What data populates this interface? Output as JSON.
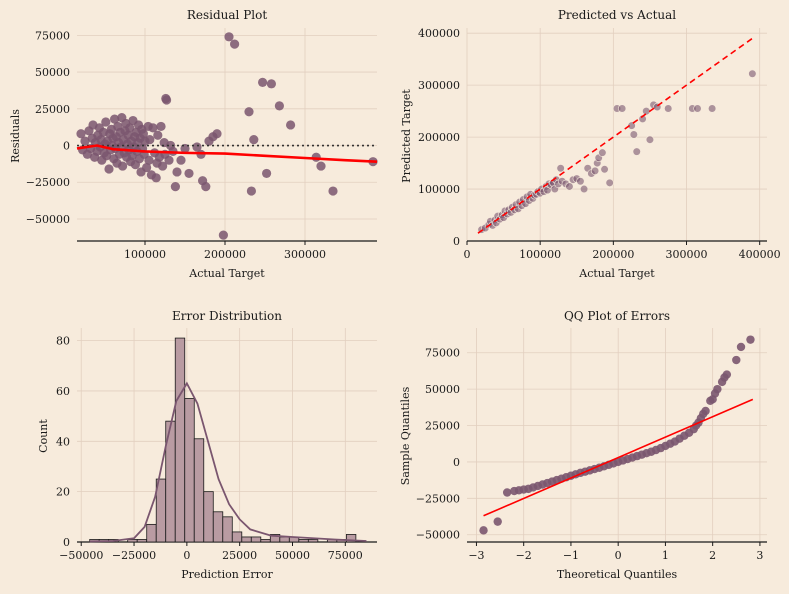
{
  "colors": {
    "background": "#f7ebdc",
    "point": "#7a566f",
    "red": "#ff0000",
    "bar_fill": "#b99ba2",
    "axis": "#1a1a1a"
  },
  "chart_data": [
    {
      "type": "scatter",
      "title": "Residual Plot",
      "xlabel": "Actual Target",
      "ylabel": "Residuals",
      "xlim": [
        15000,
        390000
      ],
      "ylim": [
        -65000,
        80000
      ],
      "xticks": [
        100000,
        200000,
        300000
      ],
      "xtick_labels": [
        "100000",
        "200000",
        "300000"
      ],
      "yticks": [
        -50000,
        -25000,
        0,
        25000,
        50000,
        75000
      ],
      "ytick_labels": [
        "−50000",
        "−25000",
        "0",
        "25000",
        "50000",
        "75000"
      ],
      "reference_line": 0,
      "points": [
        [
          20000,
          8000
        ],
        [
          22000,
          -3000
        ],
        [
          25000,
          3000
        ],
        [
          28000,
          -6000
        ],
        [
          30000,
          10000
        ],
        [
          32000,
          -2000
        ],
        [
          34000,
          5000
        ],
        [
          35000,
          14000
        ],
        [
          37000,
          -8000
        ],
        [
          38000,
          2000
        ],
        [
          40000,
          -4000
        ],
        [
          41000,
          7000
        ],
        [
          43000,
          12000
        ],
        [
          44000,
          -1000
        ],
        [
          45000,
          4000
        ],
        [
          46000,
          -10000
        ],
        [
          48000,
          9000
        ],
        [
          49000,
          -5000
        ],
        [
          50000,
          1000
        ],
        [
          51000,
          16000
        ],
        [
          52000,
          -7000
        ],
        [
          53000,
          3000
        ],
        [
          55000,
          -16000
        ],
        [
          56000,
          8000
        ],
        [
          57000,
          -3000
        ],
        [
          58000,
          11000
        ],
        [
          59000,
          0
        ],
        [
          60000,
          5000
        ],
        [
          61000,
          -9000
        ],
        [
          62000,
          18000
        ],
        [
          63000,
          -2000
        ],
        [
          64000,
          6000
        ],
        [
          65000,
          -12000
        ],
        [
          66000,
          13000
        ],
        [
          67000,
          2000
        ],
        [
          68000,
          -6000
        ],
        [
          69000,
          9000
        ],
        [
          70000,
          -1000
        ],
        [
          71000,
          19000
        ],
        [
          72000,
          -14000
        ],
        [
          73000,
          4000
        ],
        [
          74000,
          -5000
        ],
        [
          75000,
          10000
        ],
        [
          76000,
          15000
        ],
        [
          77000,
          -8000
        ],
        [
          78000,
          1000
        ],
        [
          79000,
          7000
        ],
        [
          80000,
          -3000
        ],
        [
          81000,
          12000
        ],
        [
          82000,
          -11000
        ],
        [
          83000,
          3000
        ],
        [
          84000,
          -7000
        ],
        [
          85000,
          17000
        ],
        [
          86000,
          -1000
        ],
        [
          87000,
          6000
        ],
        [
          88000,
          -13000
        ],
        [
          89000,
          9000
        ],
        [
          90000,
          -4000
        ],
        [
          91000,
          2000
        ],
        [
          92000,
          14000
        ],
        [
          93000,
          -9000
        ],
        [
          94000,
          5000
        ],
        [
          95000,
          -18000
        ],
        [
          96000,
          11000
        ],
        [
          97000,
          -2000
        ],
        [
          98000,
          8000
        ],
        [
          99000,
          -6000
        ],
        [
          100000,
          3000
        ],
        [
          102000,
          -15000
        ],
        [
          104000,
          13000
        ],
        [
          105000,
          -10000
        ],
        [
          106000,
          4000
        ],
        [
          108000,
          -20000
        ],
        [
          110000,
          12000
        ],
        [
          112000,
          -5000
        ],
        [
          114000,
          -22000
        ],
        [
          115000,
          -12000
        ],
        [
          116000,
          7000
        ],
        [
          118000,
          -8000
        ],
        [
          120000,
          13000
        ],
        [
          122000,
          -14000
        ],
        [
          124000,
          2000
        ],
        [
          125000,
          -6000
        ],
        [
          126000,
          32000
        ],
        [
          127000,
          31000
        ],
        [
          130000,
          -10000
        ],
        [
          132000,
          0
        ],
        [
          135000,
          -4000
        ],
        [
          138000,
          -28000
        ],
        [
          140000,
          -18000
        ],
        [
          145000,
          -10000
        ],
        [
          150000,
          -2000
        ],
        [
          155000,
          -19000
        ],
        [
          165000,
          -1000
        ],
        [
          170000,
          -6000
        ],
        [
          172000,
          -24000
        ],
        [
          176000,
          -28000
        ],
        [
          180000,
          3000
        ],
        [
          185000,
          6000
        ],
        [
          190000,
          8000
        ],
        [
          198000,
          -61000
        ],
        [
          205000,
          74000
        ],
        [
          212000,
          69000
        ],
        [
          230000,
          23000
        ],
        [
          233000,
          -31000
        ],
        [
          236000,
          4000
        ],
        [
          247000,
          43000
        ],
        [
          252000,
          -19000
        ],
        [
          258000,
          42000
        ],
        [
          268000,
          27000
        ],
        [
          282000,
          14000
        ],
        [
          314000,
          -8000
        ],
        [
          320000,
          -14000
        ],
        [
          335000,
          -31000
        ],
        [
          385000,
          -11000
        ]
      ],
      "lowess": [
        [
          15000,
          -2000
        ],
        [
          40000,
          0
        ],
        [
          60000,
          -2500
        ],
        [
          100000,
          -4000
        ],
        [
          150000,
          -5000
        ],
        [
          200000,
          -5500
        ],
        [
          250000,
          -7000
        ],
        [
          300000,
          -8500
        ],
        [
          350000,
          -10000
        ],
        [
          390000,
          -11000
        ]
      ]
    },
    {
      "type": "scatter",
      "title": "Predicted vs Actual",
      "xlabel": "Actual Target",
      "ylabel": "Predicted Target",
      "xlim": [
        0,
        410000
      ],
      "ylim": [
        0,
        410000
      ],
      "xticks": [
        0,
        100000,
        200000,
        300000,
        400000
      ],
      "xtick_labels": [
        "0",
        "100000",
        "200000",
        "300000",
        "400000"
      ],
      "yticks": [
        0,
        100000,
        200000,
        300000,
        400000
      ],
      "ytick_labels": [
        "0",
        "100000",
        "200000",
        "300000",
        "400000"
      ],
      "identity_line": [
        [
          15000,
          15000
        ],
        [
          390000,
          390000
        ]
      ],
      "points": [
        [
          20000,
          22000
        ],
        [
          25000,
          25000
        ],
        [
          30000,
          32000
        ],
        [
          32000,
          38000
        ],
        [
          35000,
          30000
        ],
        [
          38000,
          40000
        ],
        [
          40000,
          35000
        ],
        [
          42000,
          48000
        ],
        [
          45000,
          42000
        ],
        [
          48000,
          50000
        ],
        [
          50000,
          45000
        ],
        [
          52000,
          58000
        ],
        [
          55000,
          52000
        ],
        [
          57000,
          60000
        ],
        [
          60000,
          55000
        ],
        [
          62000,
          65000
        ],
        [
          65000,
          60000
        ],
        [
          67000,
          70000
        ],
        [
          70000,
          62000
        ],
        [
          72000,
          75000
        ],
        [
          75000,
          68000
        ],
        [
          77000,
          80000
        ],
        [
          80000,
          72000
        ],
        [
          82000,
          85000
        ],
        [
          85000,
          78000
        ],
        [
          87000,
          90000
        ],
        [
          90000,
          82000
        ],
        [
          92000,
          88000
        ],
        [
          95000,
          90000
        ],
        [
          97000,
          95000
        ],
        [
          100000,
          92000
        ],
        [
          102000,
          100000
        ],
        [
          105000,
          95000
        ],
        [
          108000,
          105000
        ],
        [
          110000,
          98000
        ],
        [
          112000,
          110000
        ],
        [
          115000,
          108000
        ],
        [
          118000,
          112000
        ],
        [
          120000,
          100000
        ],
        [
          122000,
          118000
        ],
        [
          125000,
          110000
        ],
        [
          128000,
          140000
        ],
        [
          130000,
          115000
        ],
        [
          135000,
          110000
        ],
        [
          140000,
          105000
        ],
        [
          145000,
          118000
        ],
        [
          150000,
          120000
        ],
        [
          155000,
          115000
        ],
        [
          160000,
          100000
        ],
        [
          165000,
          140000
        ],
        [
          170000,
          130000
        ],
        [
          175000,
          135000
        ],
        [
          178000,
          150000
        ],
        [
          180000,
          160000
        ],
        [
          185000,
          170000
        ],
        [
          188000,
          138000
        ],
        [
          195000,
          112000
        ],
        [
          205000,
          255000
        ],
        [
          212000,
          255000
        ],
        [
          225000,
          222000
        ],
        [
          228000,
          205000
        ],
        [
          232000,
          172000
        ],
        [
          240000,
          235000
        ],
        [
          245000,
          250000
        ],
        [
          250000,
          195000
        ],
        [
          255000,
          262000
        ],
        [
          260000,
          258000
        ],
        [
          275000,
          255000
        ],
        [
          308000,
          255000
        ],
        [
          315000,
          255000
        ],
        [
          335000,
          255000
        ],
        [
          390000,
          322000
        ]
      ]
    },
    {
      "type": "bar",
      "title": "Error Distribution",
      "xlabel": "Prediction Error",
      "ylabel": "Count",
      "xlim": [
        -52000,
        90000
      ],
      "ylim": [
        0,
        85
      ],
      "xticks": [
        -50000,
        -25000,
        0,
        25000,
        50000,
        75000
      ],
      "xtick_labels": [
        "−50000",
        "−25000",
        "0",
        "25000",
        "50000",
        "75000"
      ],
      "yticks": [
        0,
        20,
        40,
        60,
        80
      ],
      "ytick_labels": [
        "0",
        "20",
        "40",
        "60",
        "80"
      ],
      "bin_start": -46000,
      "bin_width": 4500,
      "values": [
        1,
        1,
        1,
        0,
        1,
        1,
        7,
        25,
        48,
        81,
        57,
        41,
        20,
        12,
        10,
        4,
        2,
        2,
        1,
        3,
        2,
        2,
        1,
        1,
        0,
        1,
        1,
        3
      ],
      "kde": [
        [
          -46000,
          0.2
        ],
        [
          -35000,
          0.4
        ],
        [
          -25000,
          1.5
        ],
        [
          -20000,
          6
        ],
        [
          -15000,
          18
        ],
        [
          -10000,
          38
        ],
        [
          -5000,
          56
        ],
        [
          0,
          63
        ],
        [
          5000,
          55
        ],
        [
          10000,
          40
        ],
        [
          15000,
          25
        ],
        [
          20000,
          15
        ],
        [
          25000,
          9
        ],
        [
          30000,
          5
        ],
        [
          40000,
          2.5
        ],
        [
          50000,
          2
        ],
        [
          60000,
          1.5
        ],
        [
          70000,
          1
        ],
        [
          80000,
          0.6
        ],
        [
          85000,
          0.4
        ]
      ]
    },
    {
      "type": "scatter",
      "title": "QQ Plot of Errors",
      "xlabel": "Theoretical Quantiles",
      "ylabel": "Sample Quantiles",
      "xlim": [
        -3.2,
        3.15
      ],
      "ylim": [
        -55000,
        92000
      ],
      "xticks": [
        -3,
        -2,
        -1,
        0,
        1,
        2,
        3
      ],
      "xtick_labels": [
        "−3",
        "−2",
        "−1",
        "0",
        "1",
        "2",
        "3"
      ],
      "yticks": [
        -50000,
        -25000,
        0,
        25000,
        50000,
        75000
      ],
      "ytick_labels": [
        "−50000",
        "−25000",
        "0",
        "25000",
        "50000",
        "75000"
      ],
      "fit_line": [
        [
          -2.85,
          -37000
        ],
        [
          2.85,
          43000
        ]
      ],
      "points": [
        [
          -2.85,
          -47000
        ],
        [
          -2.55,
          -41000
        ],
        [
          -2.35,
          -21000
        ],
        [
          -2.2,
          -20000
        ],
        [
          -2.1,
          -19500
        ],
        [
          -2.0,
          -19000
        ],
        [
          -1.9,
          -18500
        ],
        [
          -1.8,
          -17500
        ],
        [
          -1.7,
          -16500
        ],
        [
          -1.6,
          -15500
        ],
        [
          -1.5,
          -14500
        ],
        [
          -1.4,
          -13500
        ],
        [
          -1.3,
          -12500
        ],
        [
          -1.2,
          -11500
        ],
        [
          -1.1,
          -10500
        ],
        [
          -1.0,
          -9500
        ],
        [
          -0.9,
          -8500
        ],
        [
          -0.8,
          -7500
        ],
        [
          -0.7,
          -6700
        ],
        [
          -0.6,
          -5800
        ],
        [
          -0.5,
          -4900
        ],
        [
          -0.4,
          -4000
        ],
        [
          -0.3,
          -3000
        ],
        [
          -0.2,
          -2000
        ],
        [
          -0.1,
          -1000
        ],
        [
          0.0,
          0
        ],
        [
          0.1,
          1000
        ],
        [
          0.2,
          2000
        ],
        [
          0.3,
          3000
        ],
        [
          0.4,
          4000
        ],
        [
          0.5,
          5000
        ],
        [
          0.6,
          6000
        ],
        [
          0.7,
          7000
        ],
        [
          0.8,
          8200
        ],
        [
          0.9,
          9500
        ],
        [
          1.0,
          11000
        ],
        [
          1.1,
          12500
        ],
        [
          1.2,
          14000
        ],
        [
          1.3,
          16000
        ],
        [
          1.4,
          18000
        ],
        [
          1.5,
          20000
        ],
        [
          1.6,
          22500
        ],
        [
          1.65,
          25000
        ],
        [
          1.7,
          27000
        ],
        [
          1.75,
          30000
        ],
        [
          1.8,
          33000
        ],
        [
          1.85,
          35000
        ],
        [
          1.95,
          42000
        ],
        [
          2.0,
          43000
        ],
        [
          2.05,
          47000
        ],
        [
          2.1,
          50000
        ],
        [
          2.2,
          55000
        ],
        [
          2.25,
          58000
        ],
        [
          2.3,
          60000
        ],
        [
          2.5,
          70000
        ],
        [
          2.6,
          79000
        ],
        [
          2.8,
          84000
        ]
      ]
    }
  ]
}
